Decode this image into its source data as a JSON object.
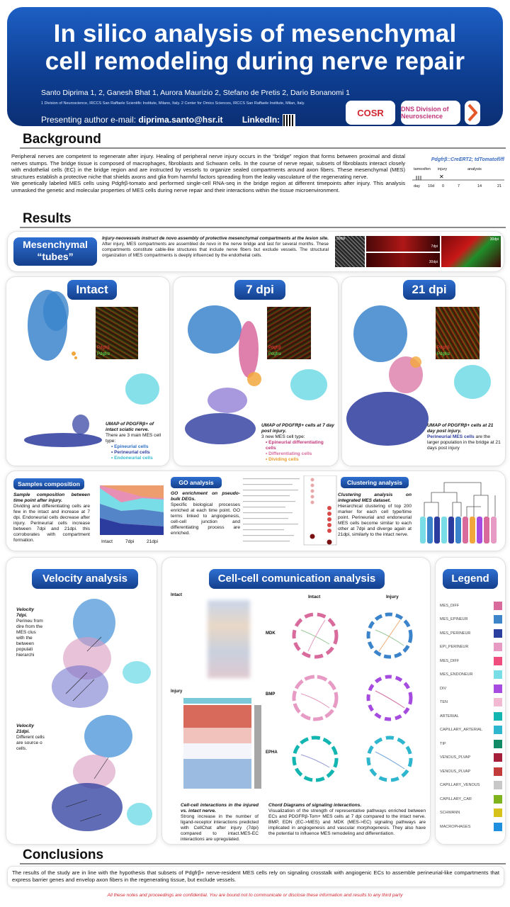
{
  "header": {
    "title_line1": "In silico analysis of mesenchymal",
    "title_line2": "cell remodeling during nerve repair",
    "authors": "Santo Diprima 1, 2, Ganesh Bhat 1, Aurora Maurizio 2, Stefano de Pretis 2, Dario Bonanomi 1",
    "affiliations": "1 Division of Neuroscience, IRCCS San Raffaele Scientific Institute, Milano, Italy.  2 Center for Omics Sciences, IRCCS San Raffaele Institute, Milan, Italy.",
    "email_label": "Presenting author e-mail:",
    "email": "diprima.santo@hsr.it",
    "linkedin_label": "LinkedIn:",
    "logos": [
      "COSR",
      "DNS Division of Neuroscience"
    ]
  },
  "background": {
    "heading": "Background",
    "p1": "Peripheral nerves are competent to regenerate after injury. Healing of peripheral nerve injury occurs in the “bridge” region that forms between proximal and distal nerves stumps. The bridge tissue is composed of macrophages, fibroblasts and Schwann cells. In the course of nerve repair, subsets of fibroblasts interact closely with endothelial cells (EC) in the bridge region and are instructed by vessels to organize sealed compartments around axon fibers. These mesenchymal (MES) structures establish a protective niche that shields axons and glia from harmful factors spreading from the leaky vasculature of the regenerating nerve.",
    "p2": "We genetically labeled MES cells using Pdgfrβ-tomato and performed single-cell RNA-seq in the bridge region at different timepoints after injury. This analysis unmasked the genetic and molecular properties of MES cells during nerve repair and their interactions within the tissue microenvironment.",
    "timeline_title": "Pdgfrβ::CreERT2; tdTomatofl/fl",
    "timeline_labels": [
      "tamoxifen",
      "injury",
      "analysis"
    ],
    "timeline_days": [
      "day",
      "10d",
      "0",
      "7",
      "14",
      "21"
    ]
  },
  "results": {
    "heading": "Results",
    "tubes": {
      "pill": "Mesenchymal “tubes”",
      "lead": "Injury-neovessels instruct de novo assembly of protective mesenchymal compartments at the lesion site.",
      "text": "After injury, MES compartments are assembled de novo in the nerve bridge and last for several months. These compartments constitute cable-like structures that include nerve fibers but exclude vessels. The structural organization of MES compartments is deeply influenced by the endothelial cells.",
      "img_labels": [
        "30dpi",
        "7dpi",
        "30dpi",
        "30dpi"
      ]
    },
    "intact": {
      "pill": "Intact",
      "inset": [
        "Pdgfrβ",
        "Pdgfrα"
      ],
      "caption": "UMAP of PDGFRβ+ of intact sciatic nerve.",
      "text": "There are 3 main MES cell type:",
      "items": [
        "Epineurial cells",
        "Perineurial cells",
        "Endoneurial cells"
      ]
    },
    "dpi7": {
      "pill": "7 dpi",
      "inset": [
        "Pdgfrβ",
        "Pdgfrα"
      ],
      "caption": "UMAP of PDGFRβ+ cells at 7 day post injury.",
      "text": "3 new MES cell type:",
      "items": [
        "Epineurial differentiating cells",
        "Differentiating cells",
        "Dividing cells"
      ]
    },
    "dpi21": {
      "pill": "21 dpi",
      "inset": [
        "Pdgfrβ",
        "Pdgfrα"
      ],
      "caption": "UMAP of PDGFRβ+ cells at 21 day post injury.",
      "highlight": "Perineurial MES cells",
      "text": "are the larger population in the bridge at 21 days post injury"
    },
    "samples": {
      "pill": "Samples composition",
      "lead": "Sample composition between time point after injury.",
      "text": "Dividing and differentiating cells are few in the intact and increase at 7 dpi. Endoneurial cells decrease after injury. Perineurial cells increase between 7dpi and 21dpi. this corroborates with compartment formation.",
      "axis": [
        "Intact",
        "7dpi",
        "21dpi"
      ]
    },
    "go": {
      "pill": "GO analysis",
      "lead": "GO enrichment on pseudo-bulk DEGs.",
      "text": "Specific biological processes enriched at each time point. GO terms linked to angiogenesis, cell-cell junction and differentiating process are enriched."
    },
    "clustering": {
      "pill": "Clustering analysis",
      "lead": "Clustering analysis on integrated MES dataset.",
      "text": "Hierarchical clustering of top 200 marker for each cell type/time point. Perineurial and endoneurial MES cells become similar to each other at 7dpi and diverge again at 21dpi, similarly to the intact nerve."
    },
    "velocity": {
      "pill": "Velocity analysis",
      "cap1_lead": "Velocity",
      "cap1_lead2": "7dpi.",
      "cap1": "Perineu from dire from the MES clus with the between populati hierarchi",
      "cap2_lead": "Velocity",
      "cap2_lead2": "21dpi.",
      "cap2": "Different cells are source o cells."
    },
    "ccc": {
      "pill": "Cell-cell comunication analysis",
      "intact": "Intact",
      "injury": "Injury",
      "col_intact": "Intact",
      "col_injury": "Injury",
      "rows": [
        "MDK",
        "BMP",
        "EPHA"
      ],
      "heat_lead": "Cell-cell interactions in the injured vs. intact nerve.",
      "heat_text": "Strong increase in the number of ligand-receptor interactions predicted with CellChat after injury (7dpi) compared to intact.MES-EC interactions are upregulated.",
      "chord_lead": "Chord Diagrams of signaling interactions.",
      "chord_text": "Visualization of the strength of representative pathways enriched between ECs and PDGFRβ-Tom+ MES cells at 7 dpi compared to the intact nerve. BMP, EDN (EC->MES) and MDK (MES->EC) signaling pathways are implicated in angiogenesis and vascular morphogenesis. They also have the potential to influence MES remodeling and differentiation."
    },
    "legend": {
      "pill": "Legend",
      "items": [
        {
          "label": "MES_DIFF",
          "color": "#d86a9c"
        },
        {
          "label": "MES_EPINEUR",
          "color": "#3d84c8"
        },
        {
          "label": "MES_PERINEUR",
          "color": "#2b3f9e"
        },
        {
          "label": "EPI_PERINEUR",
          "color": "#e79bc4"
        },
        {
          "label": "MES_DIFF",
          "color": "#ef4d7e"
        },
        {
          "label": "MES_ENDONEUR",
          "color": "#79dde8"
        },
        {
          "label": "DIV",
          "color": "#a64be0"
        },
        {
          "label": "TEN",
          "color": "#f2b9d2"
        },
        {
          "label": "ARTERIAL",
          "color": "#13b5b0"
        },
        {
          "label": "CAPILLARY_ARTERIAL",
          "color": "#2fb6cf"
        },
        {
          "label": "TIP",
          "color": "#138a66"
        },
        {
          "label": "VENOUS_PLVAP",
          "color": "#a51e3a"
        },
        {
          "label": "VENOUS_PLVAP",
          "color": "#c23c3c"
        },
        {
          "label": "CAPILLARY_VENOUS",
          "color": "#c8c8c8"
        },
        {
          "label": "CAPILLARY_CAR",
          "color": "#7fb31e"
        },
        {
          "label": "SCHWANN",
          "color": "#d6c21a"
        },
        {
          "label": "MACROPHAGES",
          "color": "#1f8fe0"
        }
      ]
    }
  },
  "conclusions": {
    "heading": "Conclusions",
    "text": "The results of the study are in line with the hypothesis that subsets of Pdgfrβ+ nerve-resident MES cells rely on signaling crosstalk with angiogenic ECs to assemble perineurial-like compartments that express barrier genes and envelop axon fibers in the regenerating tissue, but exclude vessels.",
    "disclaimer": "All these notes and proceedings are confidential. You are bound not to communicate or disclose these information and results to any third party"
  }
}
